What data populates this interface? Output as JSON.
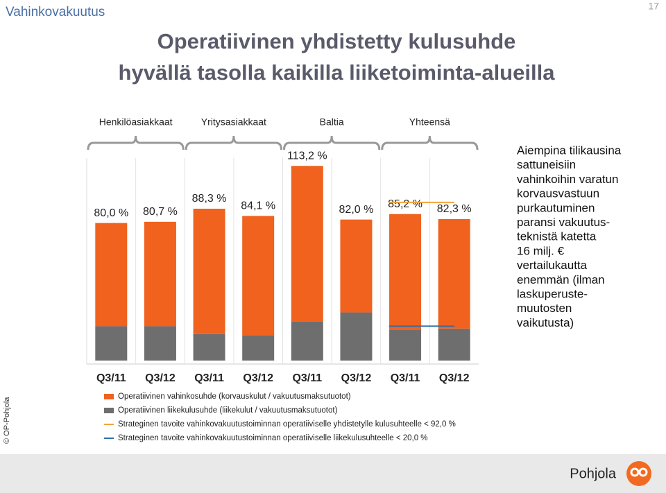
{
  "header": {
    "section": "Vahinkovakuutus",
    "page": "17",
    "title_lines": [
      "Operatiivinen yhdistetty kulusuhde",
      "hyvällä tasolla kaikilla liiketoiminta-alueilla"
    ]
  },
  "chart_data": {
    "type": "stacked_bar",
    "groups": [
      "Henkilöasiakkaat",
      "Yritysasiakkaat",
      "Baltia",
      "Yhteensä"
    ],
    "categories": [
      "Q3/11",
      "Q3/12",
      "Q3/11",
      "Q3/12",
      "Q3/11",
      "Q3/12",
      "Q3/11",
      "Q3/12"
    ],
    "series": [
      {
        "name": "Operatiivinen liikekulusuhde (liikekulut / vakuutusmaksutuotot)",
        "color": "#6e6e6e",
        "values": [
          20.0,
          20.0,
          15.4,
          14.5,
          22.6,
          28.0,
          18.0,
          18.6
        ]
      },
      {
        "name": "Operatiivinen vahinkosuhde (korvauskulut / vakuutusmaksutuotot)",
        "color": "#f0621e",
        "values": [
          60.0,
          60.7,
          72.9,
          69.6,
          90.6,
          54.0,
          67.2,
          63.7
        ]
      }
    ],
    "totals": {
      "values": [
        80.0,
        80.7,
        88.3,
        84.1,
        113.2,
        82.0,
        85.2,
        82.3
      ],
      "value_labels": [
        "80,0 %",
        "80,7 %",
        "88,3 %",
        "84,1 %",
        "113,2 %",
        "82,0 %",
        "85,2 %",
        "82,3 %"
      ]
    },
    "reference_lines": [
      {
        "name": "Strateginen tavoite vahinkovakuutustoiminnan operatiiviselle yhdistetylle kulusuhteelle < 92,0 %",
        "value": 92.0,
        "color": "#f5a33c"
      },
      {
        "name": "Strateginen tavoite vahinkovakuutustoiminnan operatiiviselle liikekulusuhteelle < 20,0 %",
        "value": 20.0,
        "color": "#2f6fae"
      }
    ],
    "ylim": [
      0,
      125
    ]
  },
  "note_lines": [
    "Aiempina tilikausina",
    "sattuneisiin",
    "vahinkoihin varatun",
    "korvausvastuun",
    "purkautuminen",
    "paransi vakuutus-",
    "teknistä katetta",
    "16 milj. €",
    "vertailukautta",
    "enemmän (ilman",
    "laskuperuste-",
    "muutosten",
    "vaikutusta)"
  ],
  "footer": {
    "copyright": "© OP-Pohjola",
    "brand": "Pohjola"
  }
}
